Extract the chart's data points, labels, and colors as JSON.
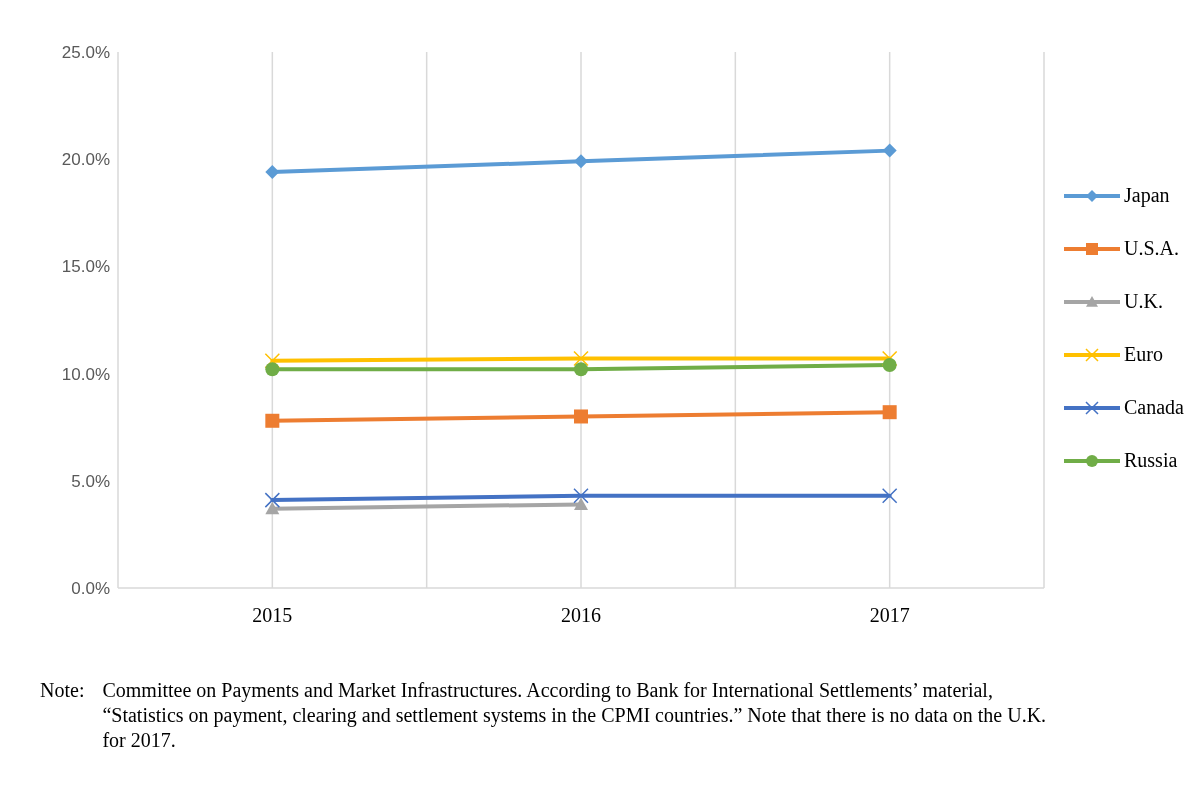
{
  "chart_data": {
    "type": "line",
    "x": [
      2015,
      2016,
      2017
    ],
    "xlim": [
      2014.5,
      2017.5
    ],
    "xticks": [
      {
        "value": 2014.5,
        "label": null
      },
      2015,
      {
        "value": 2015.5,
        "label": null
      },
      2016,
      {
        "value": 2016.5,
        "label": null
      },
      2017,
      {
        "value": 2017.5,
        "label": null
      }
    ],
    "ylim": [
      0,
      25
    ],
    "yticks": [
      {
        "value": 0,
        "label": "0.0%"
      },
      {
        "value": 5,
        "label": "5.0%"
      },
      {
        "value": 10,
        "label": "10.0%"
      },
      {
        "value": 15,
        "label": "15.0%"
      },
      {
        "value": 20,
        "label": "20.0%"
      },
      {
        "value": 25,
        "label": "25.0%"
      }
    ],
    "grid": "x",
    "legend": "right",
    "line_style": "solid",
    "series": [
      {
        "name": "Japan",
        "color": "#5b9bd5",
        "marker": "diamond",
        "values": [
          19.4,
          19.9,
          20.4
        ]
      },
      {
        "name": "U.S.A.",
        "color": "#ed7d31",
        "marker": "square",
        "values": [
          7.8,
          8.0,
          8.2
        ]
      },
      {
        "name": "U.K.",
        "color": "#a5a5a5",
        "marker": "triangle",
        "values": [
          3.7,
          3.9,
          null
        ]
      },
      {
        "name": "Euro",
        "color": "#ffc000",
        "marker": "cross",
        "values": [
          10.6,
          10.7,
          10.7
        ]
      },
      {
        "name": "Canada",
        "color": "#4472c4",
        "marker": "cross",
        "values": [
          4.1,
          4.3,
          4.3
        ]
      },
      {
        "name": "Russia",
        "color": "#70ad47",
        "marker": "circle",
        "values": [
          10.2,
          10.2,
          10.4
        ]
      }
    ],
    "annotations": [
      "Note:",
      "Committee on Payments and Market Infrastructures. According to Bank for International Settlements’ material, “Statistics on payment, clearing and settlement systems in the CPMI countries.” Note that there is no data on the U.K. for 2017."
    ]
  }
}
